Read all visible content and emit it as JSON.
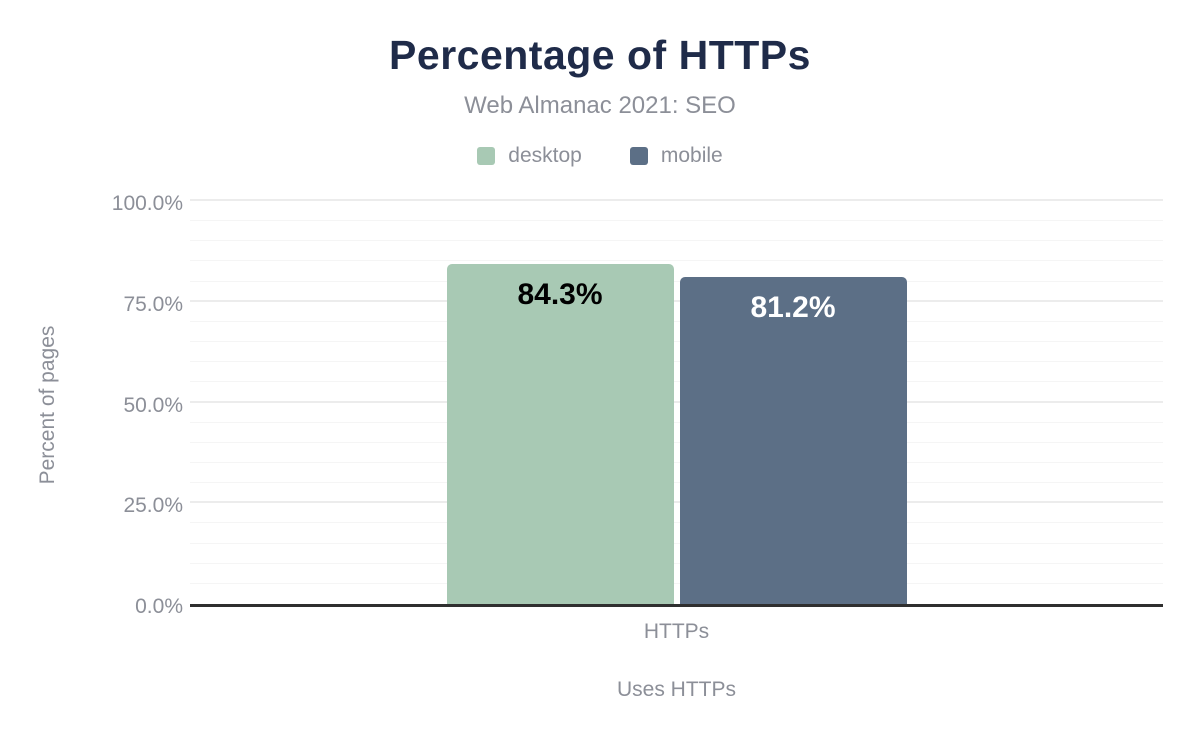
{
  "chart_data": {
    "type": "bar",
    "title": "Percentage of HTTPs",
    "subtitle": "Web Almanac 2021: SEO",
    "categories": [
      "HTTPs"
    ],
    "series": [
      {
        "name": "desktop",
        "values": [
          84.3
        ],
        "value_labels": [
          "84.3%"
        ],
        "color": "#a8c9b4",
        "label_color": "#000000"
      },
      {
        "name": "mobile",
        "values": [
          81.2
        ],
        "value_labels": [
          "81.2%"
        ],
        "color": "#5c6f86",
        "label_color": "#ffffff"
      }
    ],
    "xlabel": "Uses HTTPs",
    "ylabel": "Percent of pages",
    "ylim": [
      0,
      100
    ],
    "ytick_values": [
      0,
      25,
      50,
      75,
      100
    ],
    "ytick_labels": [
      "0.0%",
      "25.0%",
      "50.0%",
      "75.0%",
      "100.0%"
    ],
    "ytick_step_major": 25,
    "ytick_step_minor": 5,
    "grid": true,
    "legend_position": "top"
  },
  "colors": {
    "title_text": "#1f2b49",
    "muted_text": "#8c8f98",
    "axis_line": "#2f2f2f",
    "gridline_minor": "#f5f5f5",
    "gridline_major": "#ececec",
    "desktop_series": "#a8c9b4",
    "mobile_series": "#5c6f86"
  }
}
